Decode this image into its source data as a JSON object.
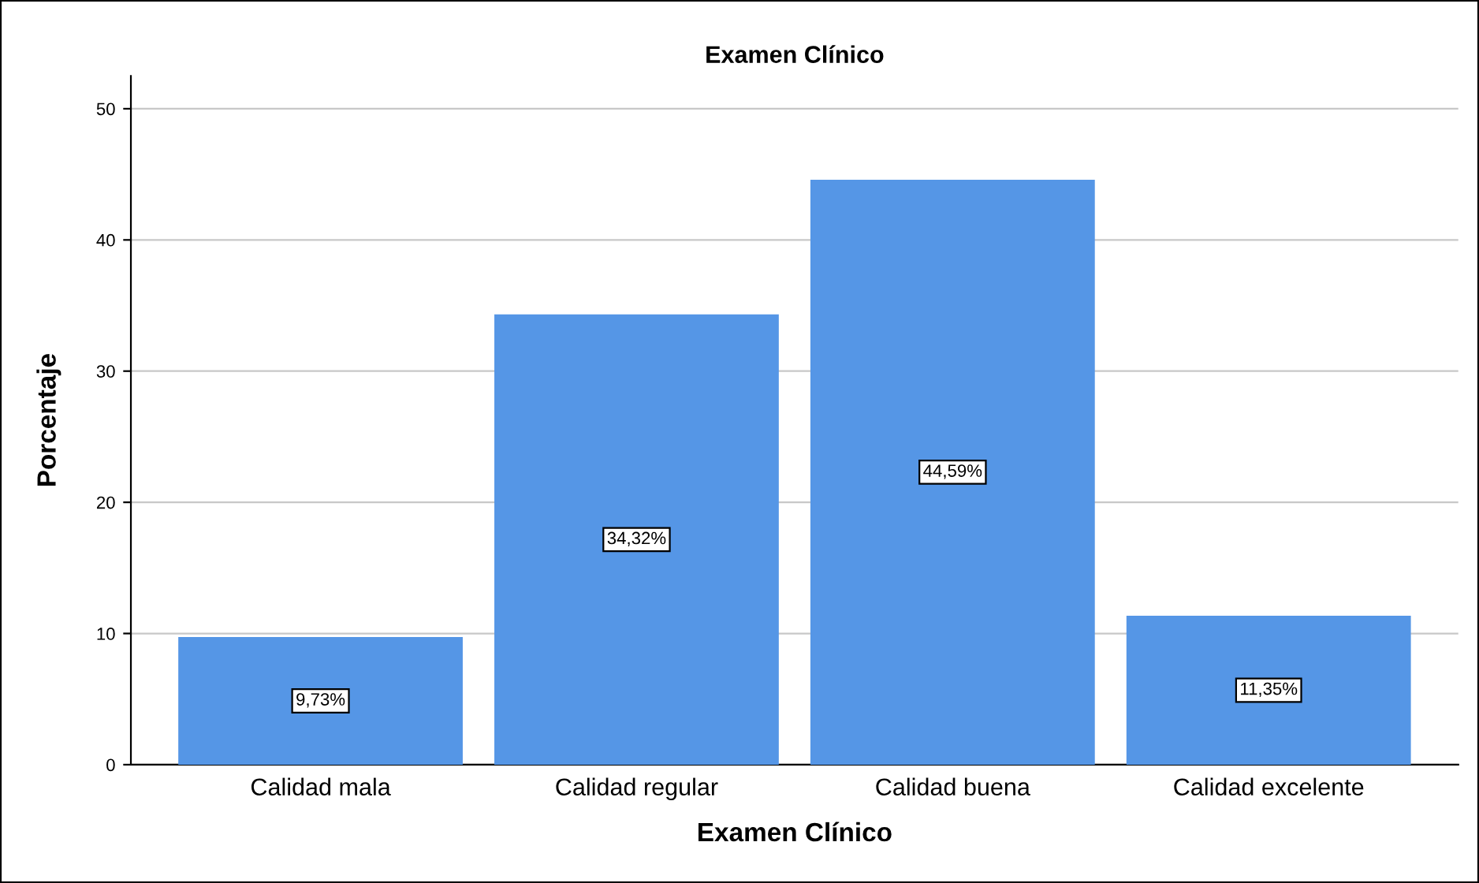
{
  "chart_data": {
    "type": "bar",
    "title": "Examen Clínico",
    "xlabel": "Examen Clínico",
    "ylabel": "Porcentaje",
    "categories": [
      "Calidad mala",
      "Calidad regular",
      "Calidad buena",
      "Calidad excelente"
    ],
    "values": [
      9.73,
      34.32,
      44.59,
      11.35
    ],
    "value_labels": [
      "9,73%",
      "34,32%",
      "44,59%",
      "11,35%"
    ],
    "color": "#5596e6",
    "ylim": [
      0,
      52.5
    ],
    "yticks": [
      0,
      10,
      20,
      30,
      40,
      50
    ],
    "grid": "y",
    "legend": false
  }
}
